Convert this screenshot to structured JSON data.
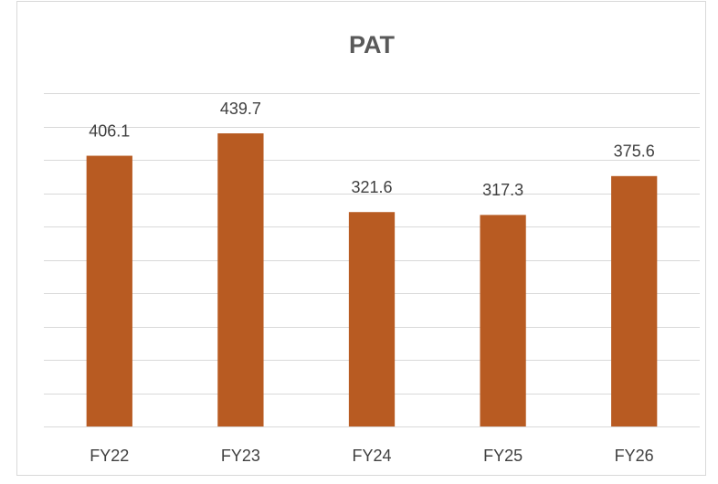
{
  "chart_data": {
    "type": "bar",
    "title": "PAT",
    "categories": [
      "FY22",
      "FY23",
      "FY24",
      "FY25",
      "FY26"
    ],
    "values": [
      406.1,
      439.7,
      321.6,
      317.3,
      375.6
    ],
    "color": "#b85b22",
    "ylim": [
      0,
      500
    ],
    "yticks": [
      0,
      50,
      100,
      150,
      200,
      250,
      300,
      350,
      400,
      450,
      500
    ],
    "grid": true
  }
}
